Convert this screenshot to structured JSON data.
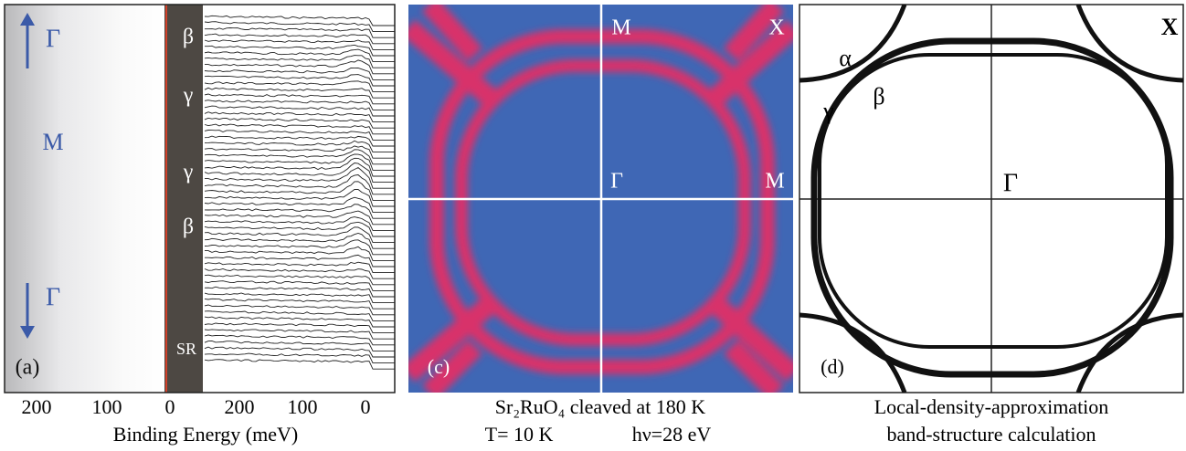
{
  "panel_a": {
    "label": "(a)",
    "gamma_top": "Γ",
    "m_point": "M",
    "gamma_bottom": "Γ",
    "strip_labels": [
      "β",
      "γ",
      "γ",
      "β",
      "SR"
    ],
    "tick_labels": [
      "200",
      "100",
      "0",
      "200",
      "100",
      "0"
    ],
    "axis_title": "Binding Energy (meV)"
  },
  "panel_c": {
    "label": "(c)",
    "points": [
      "M",
      "X",
      "Γ",
      "M"
    ],
    "caption": [
      "Sr₂RuO₄ cleaved at 180 K",
      "T= 10 K",
      "hν=28 eV"
    ]
  },
  "panel_d": {
    "label": "(d)",
    "points": [
      "X",
      "α",
      "γ",
      "β",
      "Γ"
    ],
    "caption": [
      "Local-density-approximation",
      "band-structure calculation"
    ]
  }
}
